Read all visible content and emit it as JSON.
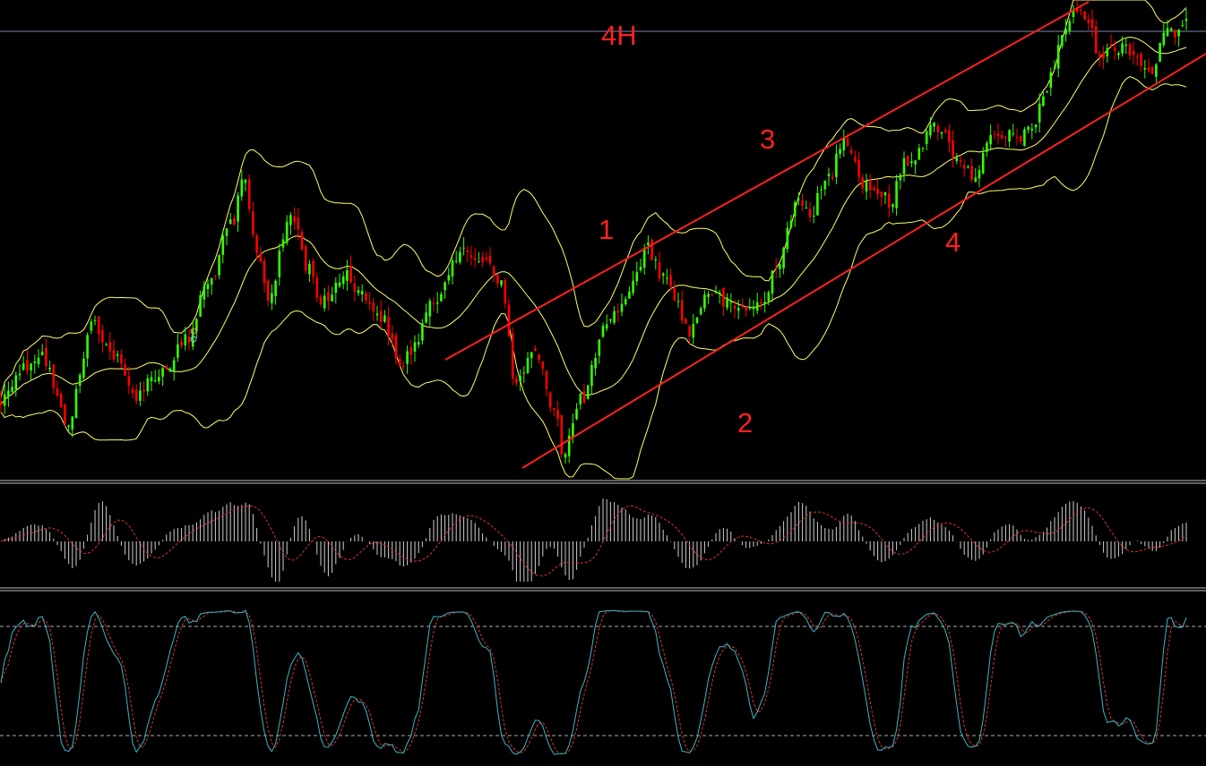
{
  "timeframe_label": "4H",
  "annotations": [
    "1",
    "2",
    "3",
    "4"
  ],
  "colors": {
    "background": "#000000",
    "bull_candle": "#33ff00",
    "bear_candle": "#ff0000",
    "bollinger_bands": "#ffff66",
    "channel_lines": "#ff2020",
    "annotation_text": "#ff2020",
    "macd_histogram": "#cfcfcf",
    "macd_signal": "#e03030",
    "stochastic_main": "#37b8c8",
    "stochastic_signal": "#e03030",
    "separator": "#bfbfbf",
    "horizontal_level": "#7788aa"
  },
  "chart_data": [
    {
      "type": "candlestick",
      "title": "",
      "indicators": [
        "bollinger-bands",
        "ascending-channel"
      ],
      "trend": "up",
      "grid": false
    },
    {
      "type": "bar",
      "title": "",
      "indicator": "macd",
      "series": [
        {
          "values": "histogram"
        },
        {
          "values": "signal"
        }
      ]
    },
    {
      "type": "line",
      "title": "",
      "indicator": "stochastic",
      "levels": [
        80,
        20
      ]
    }
  ]
}
